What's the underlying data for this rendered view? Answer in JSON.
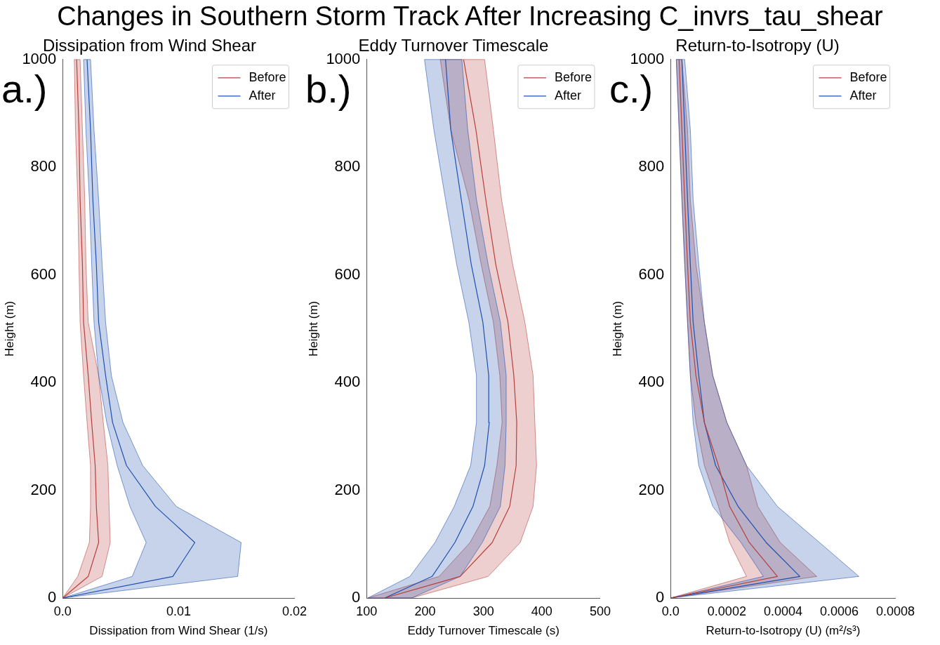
{
  "chart_data": [
    {
      "type": "other",
      "title": "Changes in Southern Storm Track After Increasing C_invrs_tau_shear"
    },
    {
      "type": "line",
      "orientation": "horizontal",
      "title": "Dissipation from Wind Shear",
      "xlabel": "Dissipation from Wind Shear (1/s)",
      "ylabel": "Height (m)",
      "annotations": [
        "a.)"
      ],
      "x": [
        0,
        40,
        103,
        170,
        246,
        326,
        413,
        512,
        620,
        740,
        870,
        1000
      ],
      "series": [
        {
          "name": "Before",
          "color": "#b5403c",
          "values": [
            0,
            0.0022,
            0.0031,
            0.0029,
            0.0028,
            0.0025,
            0.0022,
            0.0018,
            0.0017,
            0.0015,
            0.0014,
            0.0012
          ],
          "lower": [
            0,
            0.0013,
            0.0023,
            0.0024,
            0.0024,
            0.0021,
            0.0018,
            0.0015,
            0.0014,
            0.0013,
            0.0011,
            0.001
          ],
          "upper": [
            0,
            0.0034,
            0.0041,
            0.004,
            0.0039,
            0.0035,
            0.0031,
            0.0022,
            0.002,
            0.0019,
            0.0017,
            0.0015
          ]
        },
        {
          "name": "After",
          "color": "#1f4fb0",
          "values": [
            0,
            0.0095,
            0.0114,
            0.008,
            0.0055,
            0.0043,
            0.0037,
            0.0031,
            0.0029,
            0.0026,
            0.0024,
            0.0021
          ],
          "lower": [
            0,
            0.006,
            0.0072,
            0.0058,
            0.0047,
            0.0038,
            0.0031,
            0.0027,
            0.0025,
            0.0023,
            0.002,
            0.0018
          ],
          "upper": [
            0,
            0.0151,
            0.0154,
            0.0098,
            0.0069,
            0.0052,
            0.0042,
            0.0037,
            0.0034,
            0.0031,
            0.0027,
            0.0024
          ]
        }
      ],
      "xlim": [
        0,
        0.02
      ],
      "xticks": [
        {
          "value": 0,
          "label": "0.0"
        },
        0.01,
        0.02
      ],
      "ylim": [
        0,
        1000
      ],
      "yticks": [
        0,
        200,
        400,
        600,
        800,
        1000
      ],
      "grid": false,
      "legend": "top right",
      "marker": "none",
      "line_style": "solid"
    },
    {
      "type": "line",
      "orientation": "horizontal",
      "title": "Eddy Turnover Timescale",
      "xlabel": "Eddy Turnover Timescale (s)",
      "ylabel": "Height (m)",
      "annotations": [
        "b.)"
      ],
      "x": [
        0,
        40,
        103,
        170,
        246,
        326,
        413,
        512,
        620,
        740,
        870,
        1000
      ],
      "series": [
        {
          "name": "Before",
          "color": "#b5403c",
          "values": [
            131,
            260,
            315,
            345,
            356,
            357,
            352,
            342,
            321,
            304,
            287,
            266
          ],
          "lower": [
            102,
            224,
            277,
            311,
            323,
            332,
            328,
            317,
            296,
            275,
            244,
            226
          ],
          "upper": [
            177,
            308,
            363,
            385,
            391,
            388,
            385,
            371,
            350,
            331,
            317,
            302
          ]
        },
        {
          "name": "After",
          "color": "#1f4fb0",
          "values": [
            131,
            212,
            251,
            282,
            302,
            310,
            309,
            299,
            279,
            262,
            244,
            235
          ],
          "lower": [
            102,
            174,
            217,
            250,
            278,
            288,
            288,
            275,
            254,
            235,
            215,
            199
          ],
          "upper": [
            177,
            260,
            298,
            329,
            337,
            339,
            339,
            329,
            308,
            288,
            273,
            263
          ]
        }
      ],
      "xlim": [
        100,
        500
      ],
      "xticks": [
        100,
        200,
        300,
        400,
        500
      ],
      "ylim": [
        0,
        1000
      ],
      "yticks": [
        0,
        200,
        400,
        600,
        800,
        1000
      ],
      "grid": false,
      "legend": "top right",
      "marker": "none",
      "line_style": "solid"
    },
    {
      "type": "line",
      "orientation": "horizontal",
      "title": "Return-to-Isotropy (U)",
      "xlabel": "Return-to-Isotropy (U) (m²/s³)",
      "ylabel": "Height (m)",
      "annotations": [
        "c.)"
      ],
      "x": [
        0,
        40,
        103,
        170,
        246,
        326,
        413,
        512,
        620,
        740,
        870,
        1000
      ],
      "series": [
        {
          "name": "Before",
          "color": "#b5403c",
          "values": [
            0,
            0.00038,
            0.00028,
            0.00021,
            0.00017,
            0.00012,
            9e-05,
            7e-05,
            6e-05,
            5e-05,
            4e-05,
            3e-05
          ],
          "lower": [
            0,
            0.00027,
            0.00021,
            0.00017,
            0.00012,
            9e-05,
            7e-05,
            6e-05,
            5e-05,
            4e-05,
            3e-05,
            2e-05
          ],
          "upper": [
            0,
            0.00052,
            0.00039,
            0.00031,
            0.00027,
            0.0002,
            0.00015,
            0.00012,
            9e-05,
            7e-05,
            6e-05,
            4e-05
          ]
        },
        {
          "name": "After",
          "color": "#1f4fb0",
          "values": [
            0,
            0.00046,
            0.00034,
            0.00024,
            0.00016,
            0.00012,
            0.0001,
            8e-05,
            7e-05,
            6e-05,
            5e-05,
            4e-05
          ],
          "lower": [
            0,
            0.00033,
            0.00025,
            0.00015,
            0.0001,
            8e-05,
            7e-05,
            6e-05,
            5e-05,
            4e-05,
            3e-05,
            2e-05
          ],
          "upper": [
            0,
            0.00067,
            0.00053,
            0.00038,
            0.00027,
            0.0002,
            0.00015,
            0.00012,
            0.0001,
            8e-05,
            7e-05,
            5e-05
          ]
        }
      ],
      "xlim": [
        0,
        0.0008
      ],
      "xticks": [
        {
          "value": 0,
          "label": "0.0"
        },
        0.0002,
        0.0004,
        0.0006,
        0.0008
      ],
      "ylim": [
        0,
        1000
      ],
      "yticks": [
        0,
        200,
        400,
        600,
        800,
        1000
      ],
      "grid": false,
      "legend": "top right",
      "marker": "none",
      "line_style": "solid"
    }
  ]
}
